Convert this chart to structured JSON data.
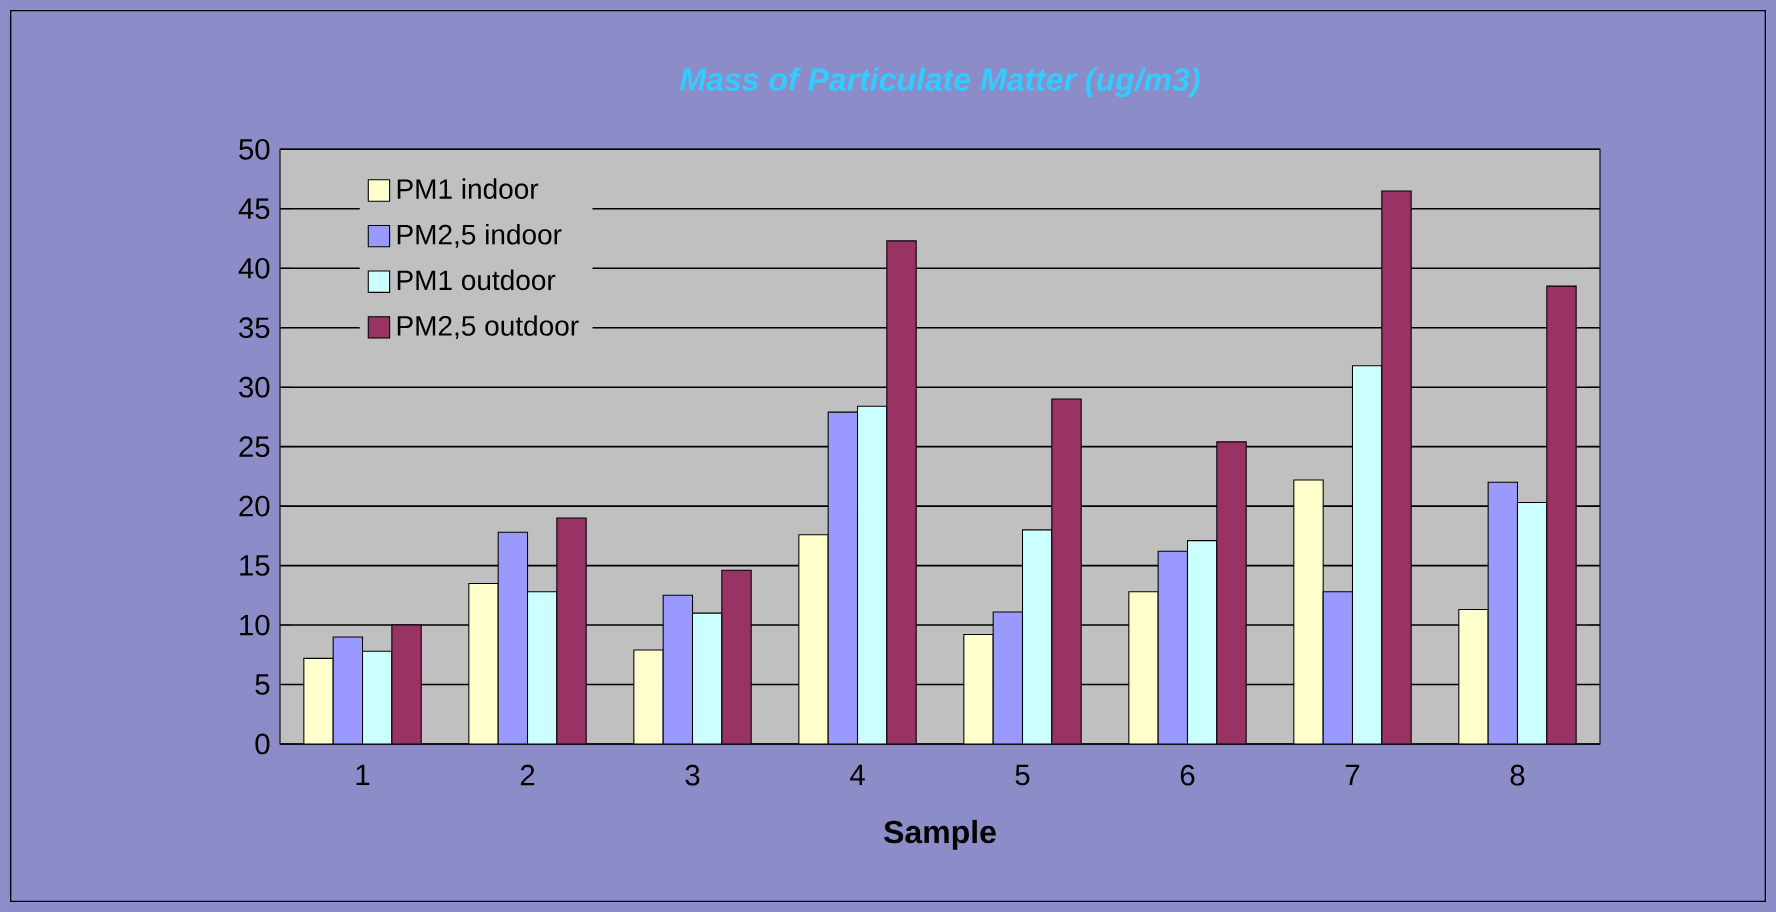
{
  "chart_data": {
    "type": "bar",
    "title": "Mass of Particulate Matter (ug/m3)",
    "xlabel": "Sample",
    "categories": [
      "1",
      "2",
      "3",
      "4",
      "5",
      "6",
      "7",
      "8"
    ],
    "series": [
      {
        "name": "PM1 indoor",
        "color": "#ffffcc",
        "values": [
          7.2,
          13.5,
          7.9,
          17.6,
          9.2,
          12.8,
          22.2,
          11.3
        ]
      },
      {
        "name": "PM2,5 indoor",
        "color": "#9999ff",
        "values": [
          9.0,
          17.8,
          12.5,
          27.9,
          11.1,
          16.2,
          12.8,
          22.0
        ]
      },
      {
        "name": "PM1 outdoor",
        "color": "#ccffff",
        "values": [
          7.8,
          12.8,
          11.0,
          28.4,
          18.0,
          17.1,
          31.8,
          20.3
        ]
      },
      {
        "name": "PM2,5 outdoor",
        "color": "#993366",
        "values": [
          10.0,
          19.0,
          14.6,
          42.3,
          29.0,
          25.4,
          46.5,
          38.5
        ]
      }
    ],
    "ylim": [
      0,
      50
    ],
    "yticks": [
      0,
      5,
      10,
      15,
      20,
      25,
      30,
      35,
      40,
      45,
      50
    ],
    "grid": "y",
    "legend": "top left"
  }
}
